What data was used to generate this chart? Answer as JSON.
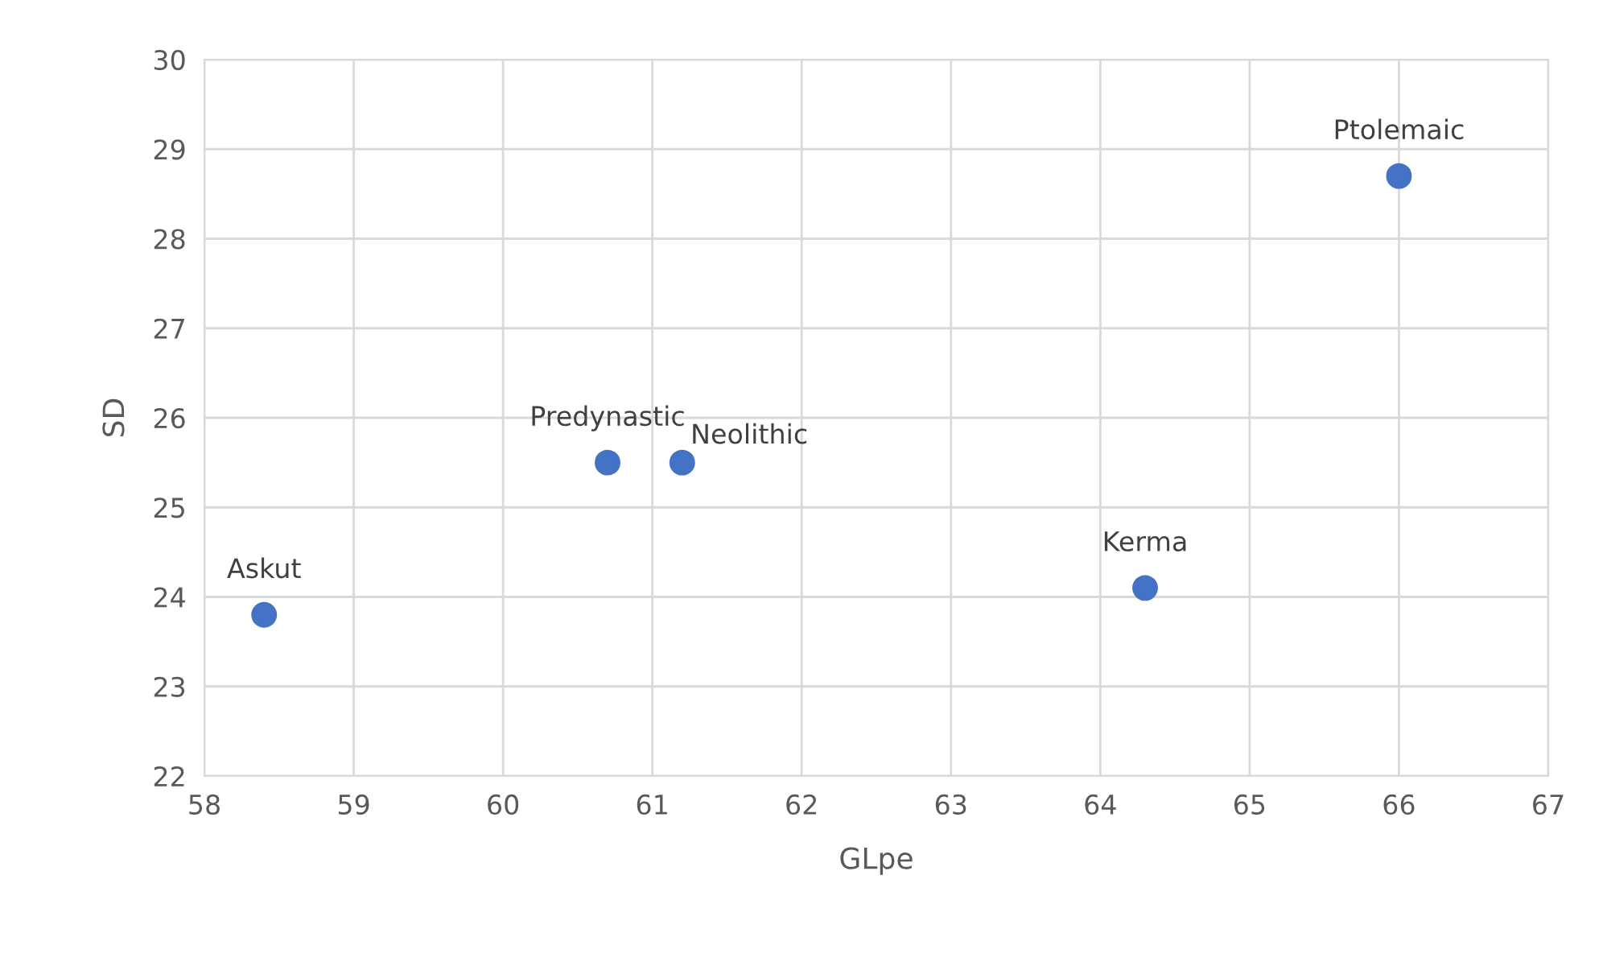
{
  "chart_data": {
    "type": "scatter",
    "xlabel": "GLpe",
    "ylabel": "SD",
    "x": [
      58.4,
      60.7,
      61.2,
      64.3,
      66.0
    ],
    "series": [
      {
        "color": "#4472c4",
        "values": [
          23.8,
          25.5,
          25.5,
          24.1,
          28.7
        ]
      }
    ],
    "xlim": [
      58,
      67
    ],
    "xticks": [
      58,
      59,
      60,
      61,
      62,
      63,
      64,
      65,
      66,
      67
    ],
    "ylim": [
      22,
      30
    ],
    "yticks": [
      22,
      23,
      24,
      25,
      26,
      27,
      28,
      29,
      30
    ],
    "grid": true,
    "marker": "circle",
    "annotations": [
      {
        "text": "Askut",
        "x": 58.4,
        "y": 23.8
      },
      {
        "text": "Predynastic",
        "x": 60.7,
        "y": 25.5
      },
      {
        "text": "Neolithic",
        "x": 61.2,
        "y": 25.5
      },
      {
        "text": "Kerma",
        "x": 64.3,
        "y": 24.1
      },
      {
        "text": "Ptolemaic",
        "x": 66.0,
        "y": 28.7
      }
    ]
  }
}
